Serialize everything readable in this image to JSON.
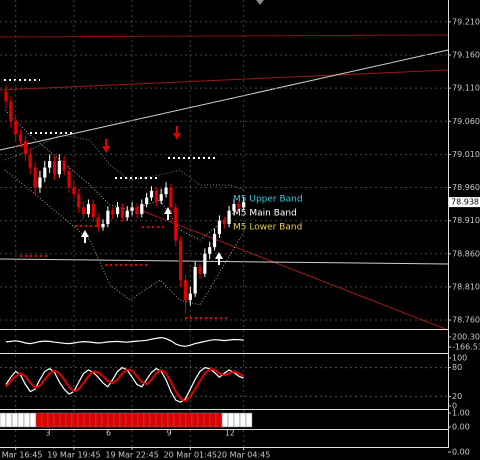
{
  "chart_data": [
    {
      "type": "candlestick",
      "categories": [
        null,
        null,
        "19 Mar 16:45",
        null,
        null,
        null,
        null,
        null,
        null,
        null,
        null,
        null,
        null,
        null,
        "19 Mar 19:45",
        null,
        null,
        null,
        null,
        null,
        null,
        null,
        null,
        null,
        null,
        null,
        "19 Mar 22:45",
        null,
        null,
        null,
        null,
        null,
        null,
        null,
        null,
        null,
        null,
        null,
        "20 Mar 01:45",
        null,
        null,
        null,
        null,
        null,
        null,
        null,
        null,
        null,
        null,
        "20 Mar 04:45"
      ],
      "open": [
        79.105,
        79.09,
        79.06,
        79.04,
        79.03,
        79.01,
        78.99,
        78.96,
        78.975,
        78.99,
        79.0,
        78.98,
        79.0,
        78.985,
        78.96,
        78.95,
        78.93,
        78.92,
        78.935,
        78.915,
        78.9,
        78.905,
        78.925,
        78.92,
        78.93,
        78.915,
        78.925,
        78.93,
        78.92,
        78.935,
        78.945,
        78.955,
        78.94,
        78.95,
        78.96,
        78.93,
        78.88,
        78.82,
        78.79,
        78.8,
        78.84,
        78.83,
        78.86,
        78.87,
        78.89,
        78.91,
        78.905,
        78.925,
        78.935,
        78.93
      ],
      "high": [
        79.115,
        79.098,
        79.07,
        79.048,
        79.038,
        79.02,
        78.998,
        78.985,
        79.0,
        79.01,
        79.008,
        79.01,
        79.008,
        78.992,
        78.968,
        78.958,
        78.938,
        78.942,
        78.942,
        78.922,
        78.912,
        78.932,
        78.93,
        78.938,
        78.936,
        78.932,
        78.938,
        78.936,
        78.942,
        78.952,
        78.962,
        78.96,
        78.958,
        78.968,
        78.966,
        78.936,
        78.886,
        78.828,
        78.81,
        78.848,
        78.846,
        78.868,
        78.878,
        78.898,
        78.918,
        78.916,
        78.932,
        78.942,
        78.94,
        78.945
      ],
      "low": [
        79.08,
        79.05,
        79.03,
        79.02,
        79.0,
        78.98,
        78.95,
        78.952,
        78.968,
        78.982,
        78.972,
        78.975,
        78.978,
        78.952,
        78.942,
        78.922,
        78.912,
        78.915,
        78.908,
        78.892,
        78.895,
        78.9,
        78.912,
        78.915,
        78.908,
        78.91,
        78.918,
        78.914,
        78.915,
        78.93,
        78.94,
        78.932,
        78.935,
        78.945,
        78.922,
        78.872,
        78.81,
        78.77,
        78.782,
        78.795,
        78.822,
        78.825,
        78.852,
        78.865,
        78.884,
        78.898,
        78.9,
        78.918,
        78.924,
        78.926
      ],
      "close": [
        79.09,
        79.06,
        79.04,
        79.03,
        79.01,
        78.99,
        78.96,
        78.975,
        78.99,
        79.0,
        78.98,
        79.0,
        78.985,
        78.96,
        78.95,
        78.93,
        78.92,
        78.935,
        78.915,
        78.9,
        78.905,
        78.925,
        78.92,
        78.93,
        78.915,
        78.925,
        78.93,
        78.92,
        78.935,
        78.945,
        78.955,
        78.94,
        78.95,
        78.96,
        78.93,
        78.88,
        78.82,
        78.79,
        78.8,
        78.84,
        78.83,
        78.86,
        78.87,
        78.89,
        78.91,
        78.905,
        78.925,
        78.935,
        78.93,
        78.938
      ],
      "up_color": "#ffffff",
      "down_color": "#e00000",
      "ylim": [
        78.748,
        79.243
      ],
      "yticks": [
        {
          "value": 78.76,
          "label": "78.760"
        },
        {
          "value": 78.81,
          "label": "78.810"
        },
        {
          "value": 78.86,
          "label": "78.860"
        },
        {
          "value": 78.91,
          "label": "78.910"
        },
        {
          "value": 78.96,
          "label": "78.960"
        },
        {
          "value": 79.01,
          "label": "79.010"
        },
        {
          "value": 79.06,
          "label": "79.060"
        },
        {
          "value": 79.11,
          "label": "79.110"
        },
        {
          "value": 79.16,
          "label": "79.160"
        },
        {
          "value": 79.21,
          "label": "79.210"
        }
      ],
      "grid": true,
      "current_price": 78.938,
      "annotations": [
        {
          "text": "M5 Upper Band",
          "color": "#40c8d8"
        },
        {
          "text": "M5 Main Band",
          "color": "#ffffff"
        },
        {
          "text": "M5 Lower Band",
          "color": "#e8d040"
        }
      ]
    },
    {
      "type": "line",
      "series": [
        {
          "color": "#ffffff",
          "values": [
            20,
            40,
            60,
            30,
            -20,
            -40,
            -10,
            30,
            50,
            40,
            10,
            -10,
            -30,
            -40,
            -20,
            10,
            30,
            20,
            0,
            -20,
            -10,
            20,
            30,
            40,
            20,
            10,
            30,
            50,
            60,
            80,
            120,
            150,
            180,
            140,
            60,
            -60,
            -120,
            -140,
            -100,
            -40,
            0,
            40,
            80,
            100,
            90,
            70,
            90,
            110,
            100,
            90
          ]
        }
      ],
      "ylim": [
        -166.53,
        200.305
      ],
      "yticks": [
        200.305,
        -166.53
      ]
    },
    {
      "type": "line",
      "series": [
        {
          "color": "#ffffff",
          "values": [
            45,
            60,
            72,
            65,
            45,
            30,
            35,
            55,
            72,
            78,
            70,
            50,
            35,
            25,
            30,
            50,
            68,
            75,
            70,
            60,
            48,
            40,
            55,
            72,
            80,
            75,
            60,
            45,
            40,
            55,
            70,
            78,
            72,
            55,
            30,
            12,
            8,
            15,
            35,
            55,
            72,
            80,
            78,
            70,
            60,
            68,
            75,
            70,
            62,
            58
          ]
        },
        {
          "color": "#e00000",
          "values": [
            40,
            52,
            62,
            68,
            62,
            48,
            38,
            42,
            55,
            68,
            74,
            68,
            55,
            40,
            30,
            35,
            48,
            62,
            72,
            70,
            62,
            52,
            48,
            55,
            68,
            76,
            74,
            62,
            50,
            45,
            55,
            68,
            75,
            68,
            50,
            30,
            15,
            10,
            20,
            35,
            52,
            68,
            76,
            76,
            68,
            64,
            68,
            72,
            68,
            62
          ]
        }
      ],
      "ylim": [
        0,
        100
      ],
      "yticks": [
        100,
        80,
        20,
        0
      ]
    },
    {
      "type": "state",
      "values": [
        1,
        1,
        1,
        1,
        1,
        1,
        1,
        1,
        1,
        1,
        1,
        1,
        1,
        1,
        1,
        1,
        1,
        1,
        1,
        1,
        1,
        1,
        1,
        1,
        1,
        1,
        1,
        1,
        1,
        1,
        1,
        1,
        1,
        1,
        1,
        1,
        1,
        1,
        1,
        1,
        1,
        1
      ],
      "colors": [
        "#ffffff",
        "#ffffff",
        "#ffffff",
        "#ffffff",
        "#ffffff",
        "#ffffff",
        "#e00000",
        "#e00000",
        "#e00000",
        "#e00000",
        "#e00000",
        "#e00000",
        "#e00000",
        "#e00000",
        "#e00000",
        "#e00000",
        "#e00000",
        "#e00000",
        "#e00000",
        "#e00000",
        "#e00000",
        "#e00000",
        "#e00000",
        "#e00000",
        "#e00000",
        "#e00000",
        "#e00000",
        "#e00000",
        "#e00000",
        "#e00000",
        "#e00000",
        "#e00000",
        "#e00000",
        "#e00000",
        "#e00000",
        "#e00000",
        "#e00000",
        "#ffffff",
        "#ffffff",
        "#ffffff",
        "#ffffff",
        "#ffffff"
      ],
      "ylim": [
        0,
        1
      ],
      "yticks": [
        {
          "value": 1,
          "label": "1.00"
        },
        {
          "value": 0,
          "label": "0.00"
        }
      ],
      "xlim": [
        0.624,
        22.8
      ],
      "xticks": [
        3,
        6,
        9,
        12
      ]
    },
    {
      "type": "empty",
      "ylim": [
        0,
        1
      ],
      "yticks": [
        {
          "value": 0,
          "label": "0.00"
        }
      ]
    }
  ]
}
